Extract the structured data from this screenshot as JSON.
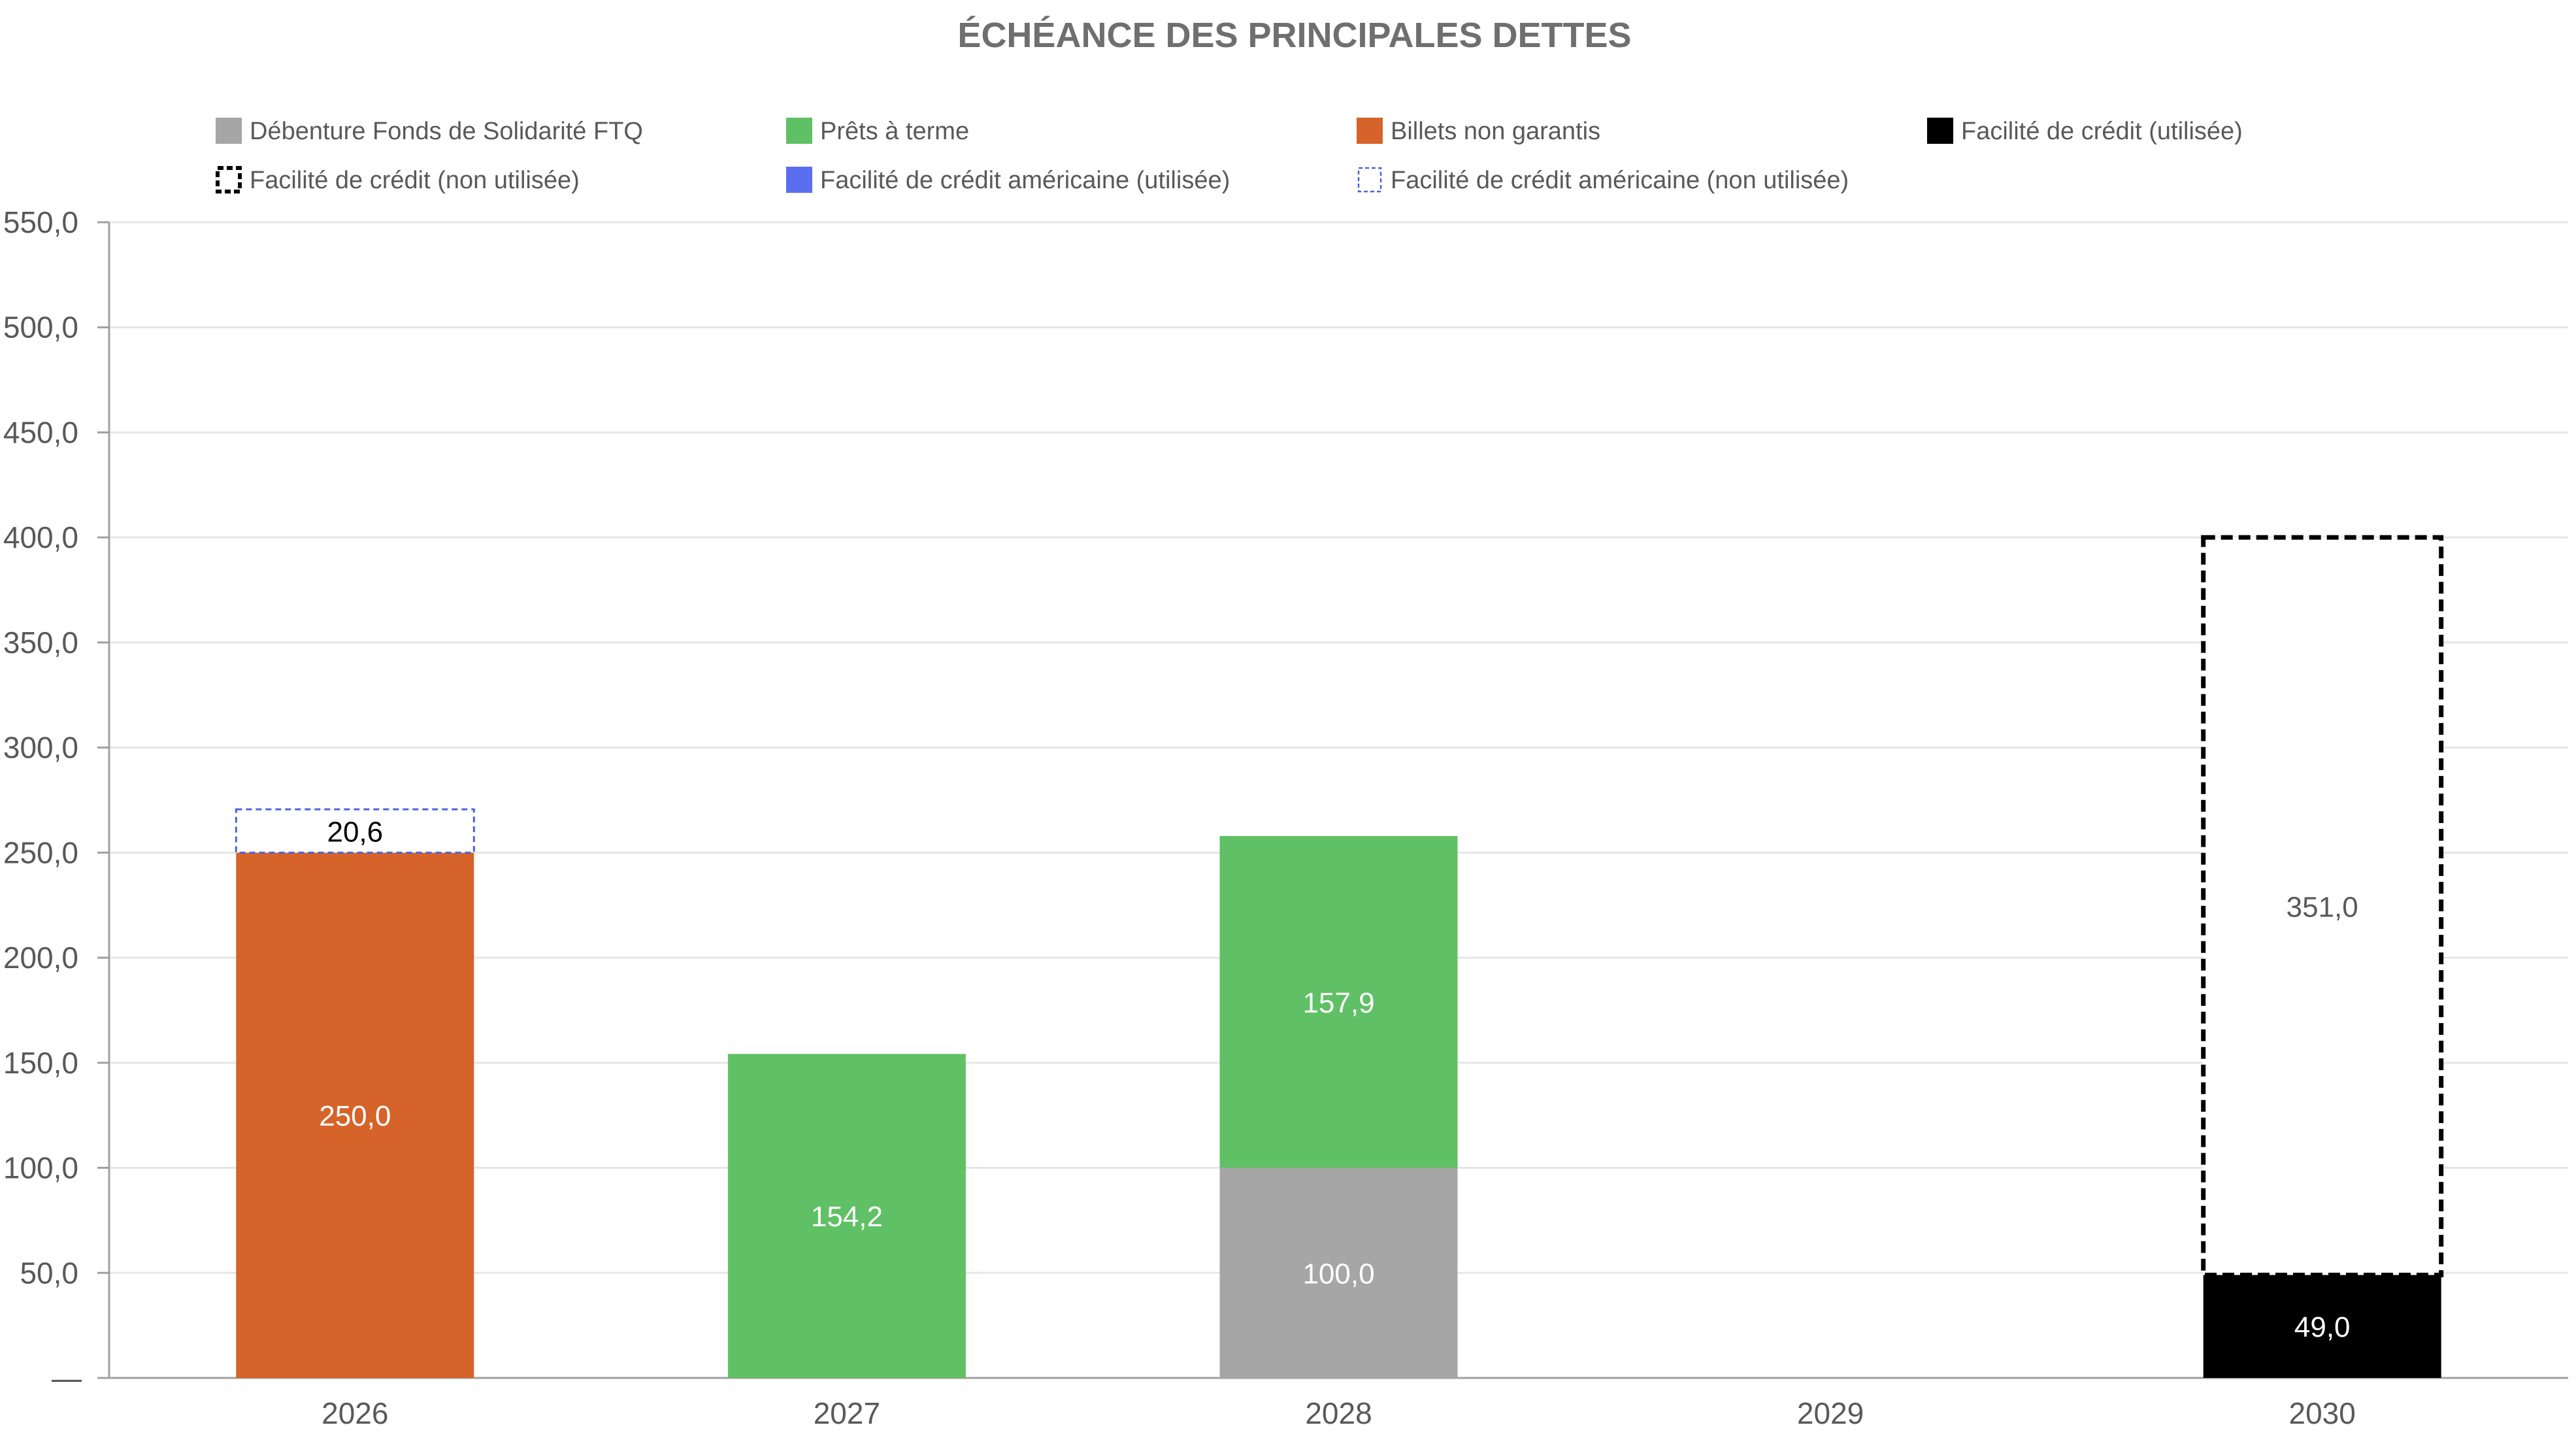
{
  "chart_data": {
    "type": "bar",
    "stacked": true,
    "title": "ÉCHÉANCE DES PRINCIPALES DETTES",
    "xlabel": "",
    "ylabel": "",
    "categories": [
      "2026",
      "2027",
      "2028",
      "2029",
      "2030"
    ],
    "ylim": [
      0,
      550
    ],
    "yticks": [
      0,
      50,
      100,
      150,
      200,
      250,
      300,
      350,
      400,
      450,
      500,
      550
    ],
    "ytick_labels": [
      "—",
      "50,0",
      "100,0",
      "150,0",
      "200,0",
      "250,0",
      "300,0",
      "350,0",
      "400,0",
      "450,0",
      "500,0",
      "550,0"
    ],
    "grid": true,
    "legend_position": "top",
    "series": [
      {
        "name": "Débenture Fonds de Solidarité FTQ",
        "color": "#a6a6a6",
        "style": "solid",
        "label_color": "#ffffff",
        "values": [
          0,
          0,
          100.0,
          0,
          0
        ],
        "labels": [
          "",
          "",
          "100,0",
          "",
          ""
        ]
      },
      {
        "name": "Prêts à terme",
        "color": "#60c065",
        "style": "solid",
        "label_color": "#ffffff",
        "values": [
          0,
          154.2,
          157.9,
          0,
          0
        ],
        "labels": [
          "",
          "154,2",
          "157,9",
          "",
          ""
        ]
      },
      {
        "name": "Billets non garantis",
        "color": "#d5632a",
        "style": "solid",
        "label_color": "#ffffff",
        "values": [
          250.0,
          0,
          0,
          0,
          0
        ],
        "labels": [
          "250,0",
          "",
          "",
          "",
          ""
        ]
      },
      {
        "name": "Facilité de crédit (utilisée)",
        "color": "#000000",
        "style": "solid",
        "label_color": "#ffffff",
        "values": [
          0,
          0,
          0,
          0,
          49.0
        ],
        "labels": [
          "",
          "",
          "",
          "",
          "49,0"
        ]
      },
      {
        "name": "Facilité de crédit (non utilisée)",
        "color": "#000000",
        "style": "dashed-black",
        "label_color": "#595959",
        "values": [
          0,
          0,
          0,
          0,
          351.0
        ],
        "labels": [
          "",
          "",
          "",
          "",
          "351,0"
        ]
      },
      {
        "name": "Facilité de crédit américaine (utilisée)",
        "color": "#5b6ef0",
        "style": "solid",
        "label_color": "#ffffff",
        "values": [
          0,
          0,
          0,
          0,
          0
        ],
        "labels": [
          "",
          "",
          "",
          "",
          ""
        ]
      },
      {
        "name": "Facilité de crédit américaine (non utilisée)",
        "color": "#4a63e0",
        "style": "dashed-blue",
        "label_color": "#000000",
        "values": [
          20.6,
          0,
          0,
          0,
          0
        ],
        "labels": [
          "20,6",
          "",
          "",
          "",
          ""
        ]
      }
    ]
  }
}
